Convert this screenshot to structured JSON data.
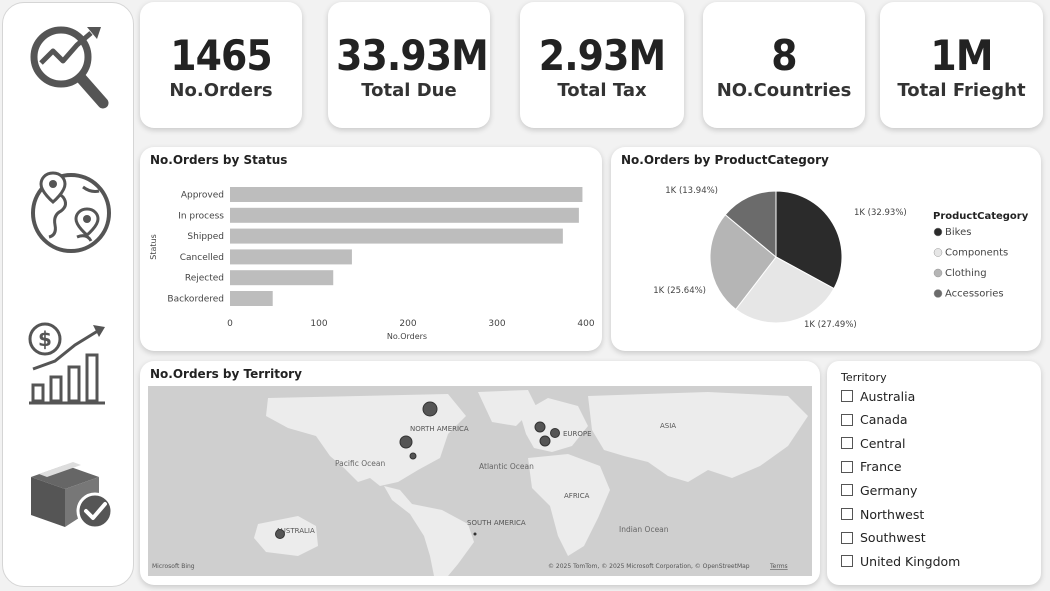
{
  "sidebar": {
    "icons": [
      "analytics-icon",
      "globe-pin-icon",
      "sales-growth-icon",
      "delivered-box-icon"
    ]
  },
  "kpis": [
    {
      "value": "1465",
      "label": "No.Orders"
    },
    {
      "value": "33.93M",
      "label": "Total Due"
    },
    {
      "value": "2.93M",
      "label": "Total Tax"
    },
    {
      "value": "8",
      "label": "NO.Countries"
    },
    {
      "value": "1M",
      "label": "Total Frieght"
    }
  ],
  "status_chart": {
    "title": "No.Orders by Status",
    "ylabel": "Status",
    "xlabel": "No.Orders"
  },
  "category_chart": {
    "title": "No.Orders by ProductCategory",
    "legend_title": "ProductCategory"
  },
  "territory_map": {
    "title": "No.Orders by Territory",
    "labels": {
      "north_america": "NORTH AMERICA",
      "europe": "EUROPE",
      "asia": "ASIA",
      "pacific": "Pacific Ocean",
      "atlantic": "Atlantic Ocean",
      "africa": "AFRICA",
      "south_america": "SOUTH AMERICA",
      "indian": "Indian Ocean",
      "australia": "AUSTRALIA"
    },
    "brand": "Microsoft Bing",
    "copyright": "© 2025 TomTom, © 2025 Microsoft Corporation, © OpenStreetMap",
    "terms": "Terms"
  },
  "slicer": {
    "title": "Territory",
    "items": [
      "Australia",
      "Canada",
      "Central",
      "France",
      "Germany",
      "Northwest",
      "Southwest",
      "United Kingdom"
    ]
  },
  "chart_data": [
    {
      "type": "bar",
      "orientation": "horizontal",
      "title": "No.Orders by Status",
      "categories": [
        "Approved",
        "In process",
        "Shipped",
        "Cancelled",
        "Rejected",
        "Backordered"
      ],
      "values": [
        396,
        392,
        374,
        137,
        116,
        48
      ],
      "xlabel": "No.Orders",
      "ylabel": "Status",
      "xticks": [
        "0",
        "100",
        "200",
        "300",
        "400"
      ],
      "xlim": [
        0,
        400
      ],
      "color": "#bdbdbd"
    },
    {
      "type": "pie",
      "title": "No.Orders by ProductCategory",
      "categories": [
        "Bikes",
        "Components",
        "Clothing",
        "Accessories"
      ],
      "values": [
        32.93,
        27.49,
        25.64,
        13.94
      ],
      "labels": [
        "1K (32.93%)",
        "1K (27.49%)",
        "1K (25.64%)",
        "1K (13.94%)"
      ],
      "colors": [
        "#2b2b2b",
        "#e6e6e6",
        "#b5b5b5",
        "#6b6b6b"
      ],
      "legend_position": "right"
    }
  ]
}
